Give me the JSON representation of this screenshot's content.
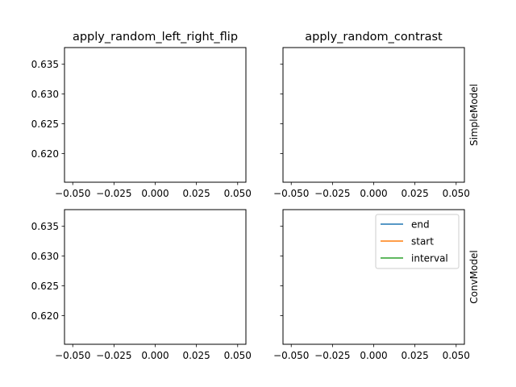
{
  "chart_data": {
    "type": "line",
    "grid": false,
    "sharey": true,
    "column_titles": [
      "apply_random_left_right_flip",
      "apply_random_contrast"
    ],
    "row_labels": [
      "SimpleModel",
      "ConvModel"
    ],
    "xticks": [
      "−0.050",
      "−0.025",
      "0.000",
      "0.025",
      "0.050"
    ],
    "yticks": [
      "0.635",
      "0.630",
      "0.625",
      "0.620"
    ],
    "xlim": [
      -0.055,
      0.055
    ],
    "ylim": [
      0.6152,
      0.6378
    ],
    "legend": {
      "placement": "top-right of bottom-right panel",
      "entries": [
        {
          "name": "end",
          "color": "#1f77b4"
        },
        {
          "name": "start",
          "color": "#ff7f0e"
        },
        {
          "name": "interval",
          "color": "#2ca02c"
        }
      ]
    },
    "panels": [
      {
        "row": "SimpleModel",
        "column": "apply_random_left_right_flip",
        "series": []
      },
      {
        "row": "SimpleModel",
        "column": "apply_random_contrast",
        "series": []
      },
      {
        "row": "ConvModel",
        "column": "apply_random_left_right_flip",
        "series": []
      },
      {
        "row": "ConvModel",
        "column": "apply_random_contrast",
        "series": []
      }
    ]
  }
}
